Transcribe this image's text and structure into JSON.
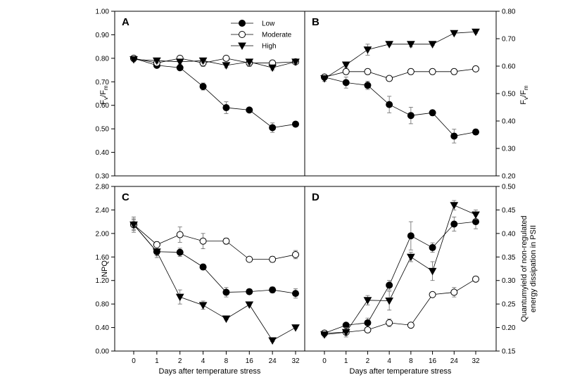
{
  "chart_data": [
    {
      "panel": "A",
      "type": "line",
      "ylabel": "Fv/Fm",
      "ylim": [
        0.3,
        1.0
      ],
      "yticks": [
        "0.30",
        "0.40",
        "0.50",
        "0.60",
        "0.70",
        "0.80",
        "0.90",
        "1.00"
      ],
      "categories": [
        "0",
        "1",
        "2",
        "4",
        "8",
        "16",
        "24",
        "32"
      ],
      "legend": "top",
      "series": [
        {
          "name": "Low",
          "marker": "filled-circle",
          "values": [
            0.8,
            0.77,
            0.76,
            0.68,
            0.59,
            0.58,
            0.505,
            0.52
          ],
          "errors": [
            0.01,
            0.01,
            0.01,
            0.015,
            0.025,
            0.01,
            0.02,
            0.01
          ]
        },
        {
          "name": "Moderate",
          "marker": "open-circle",
          "values": [
            0.8,
            0.78,
            0.8,
            0.78,
            0.8,
            0.78,
            0.78,
            0.785
          ],
          "errors": [
            0.01,
            0.01,
            0.01,
            0.015,
            0.01,
            0.015,
            0.01,
            0.01
          ]
        },
        {
          "name": "High",
          "marker": "filled-triangle-down",
          "values": [
            0.795,
            0.79,
            0.785,
            0.79,
            0.77,
            0.785,
            0.76,
            0.785
          ],
          "errors": [
            0.01,
            0.01,
            0.01,
            0.01,
            0.01,
            0.01,
            0.01,
            0.01
          ]
        }
      ]
    },
    {
      "panel": "B",
      "type": "line",
      "ylabel": "Fv/Fm",
      "ylim": [
        0.2,
        0.8
      ],
      "yticks": [
        "0.20",
        "0.30",
        "0.40",
        "0.50",
        "0.60",
        "0.70",
        "0.80"
      ],
      "categories": [
        "0",
        "1",
        "2",
        "4",
        "8",
        "16",
        "24",
        "32"
      ],
      "series": [
        {
          "name": "Low",
          "marker": "filled-circle",
          "values": [
            0.56,
            0.54,
            0.53,
            0.46,
            0.42,
            0.43,
            0.345,
            0.36
          ],
          "errors": [
            0.01,
            0.02,
            0.015,
            0.03,
            0.03,
            0.01,
            0.025,
            0.01
          ]
        },
        {
          "name": "Moderate",
          "marker": "open-circle",
          "values": [
            0.56,
            0.58,
            0.58,
            0.555,
            0.58,
            0.58,
            0.58,
            0.59
          ],
          "errors": [
            0.01,
            0.01,
            0.01,
            0.005,
            0.01,
            0.01,
            0.01,
            0.01
          ]
        },
        {
          "name": "High",
          "marker": "filled-triangle-down",
          "values": [
            0.555,
            0.605,
            0.66,
            0.68,
            0.68,
            0.68,
            0.72,
            0.725
          ],
          "errors": [
            0.01,
            0.01,
            0.02,
            0.005,
            0.01,
            0.005,
            0.005,
            0.005
          ]
        }
      ]
    },
    {
      "panel": "C",
      "type": "line",
      "ylabel": "NPQ",
      "xlabel": "Days after temperature stress",
      "ylim": [
        0.0,
        2.8
      ],
      "yticks": [
        "0.00",
        "0.40",
        "0.80",
        "1.20",
        "1.60",
        "2.00",
        "2.40",
        "2.80"
      ],
      "categories": [
        "0",
        "1",
        "2",
        "4",
        "8",
        "16",
        "24",
        "32"
      ],
      "series": [
        {
          "name": "Low",
          "marker": "filled-circle",
          "values": [
            2.15,
            1.69,
            1.68,
            1.43,
            1.0,
            1.01,
            1.04,
            0.98
          ],
          "errors": [
            0.1,
            0.1,
            0.07,
            0.05,
            0.08,
            0.03,
            0.05,
            0.08
          ]
        },
        {
          "name": "Moderate",
          "marker": "open-circle",
          "values": [
            2.15,
            1.81,
            1.98,
            1.87,
            1.87,
            1.56,
            1.56,
            1.64
          ],
          "errors": [
            0.13,
            0.05,
            0.13,
            0.13,
            0.05,
            0.03,
            0.05,
            0.07
          ]
        },
        {
          "name": "High",
          "marker": "filled-triangle-down",
          "values": [
            2.15,
            1.69,
            0.92,
            0.78,
            0.55,
            0.79,
            0.18,
            0.4
          ],
          "errors": [
            0.08,
            0.07,
            0.12,
            0.07,
            0.02,
            0.02,
            0.02,
            0.02
          ]
        }
      ]
    },
    {
      "panel": "D",
      "type": "line",
      "ylabel": "Quantumyield of non-regulated energy dissipation in PSII",
      "xlabel": "Days after temperature stress",
      "ylim": [
        0.15,
        0.5
      ],
      "yticks": [
        "0.15",
        "0.20",
        "0.25",
        "0.30",
        "0.35",
        "0.40",
        "0.45",
        "0.50"
      ],
      "categories": [
        "0",
        "1",
        "2",
        "4",
        "8",
        "16",
        "24",
        "32"
      ],
      "series": [
        {
          "name": "Low",
          "marker": "filled-circle",
          "values": [
            0.188,
            0.205,
            0.21,
            0.29,
            0.395,
            0.37,
            0.42,
            0.425
          ],
          "errors": [
            0.005,
            0.005,
            0.01,
            0.01,
            0.03,
            0.01,
            0.015,
            0.015
          ]
        },
        {
          "name": "Moderate",
          "marker": "open-circle",
          "values": [
            0.188,
            0.19,
            0.195,
            0.21,
            0.205,
            0.27,
            0.275,
            0.303
          ],
          "errors": [
            0.005,
            0.005,
            0.005,
            0.008,
            0.005,
            0.005,
            0.01,
            0.003
          ]
        },
        {
          "name": "High",
          "marker": "filled-triangle-down",
          "values": [
            0.185,
            0.19,
            0.258,
            0.257,
            0.35,
            0.32,
            0.46,
            0.44
          ],
          "errors": [
            0.005,
            0.01,
            0.01,
            0.02,
            0.01,
            0.02,
            0.01,
            0.01
          ]
        }
      ]
    }
  ],
  "legend": {
    "entries": [
      "Low",
      "Moderate",
      "High"
    ]
  }
}
